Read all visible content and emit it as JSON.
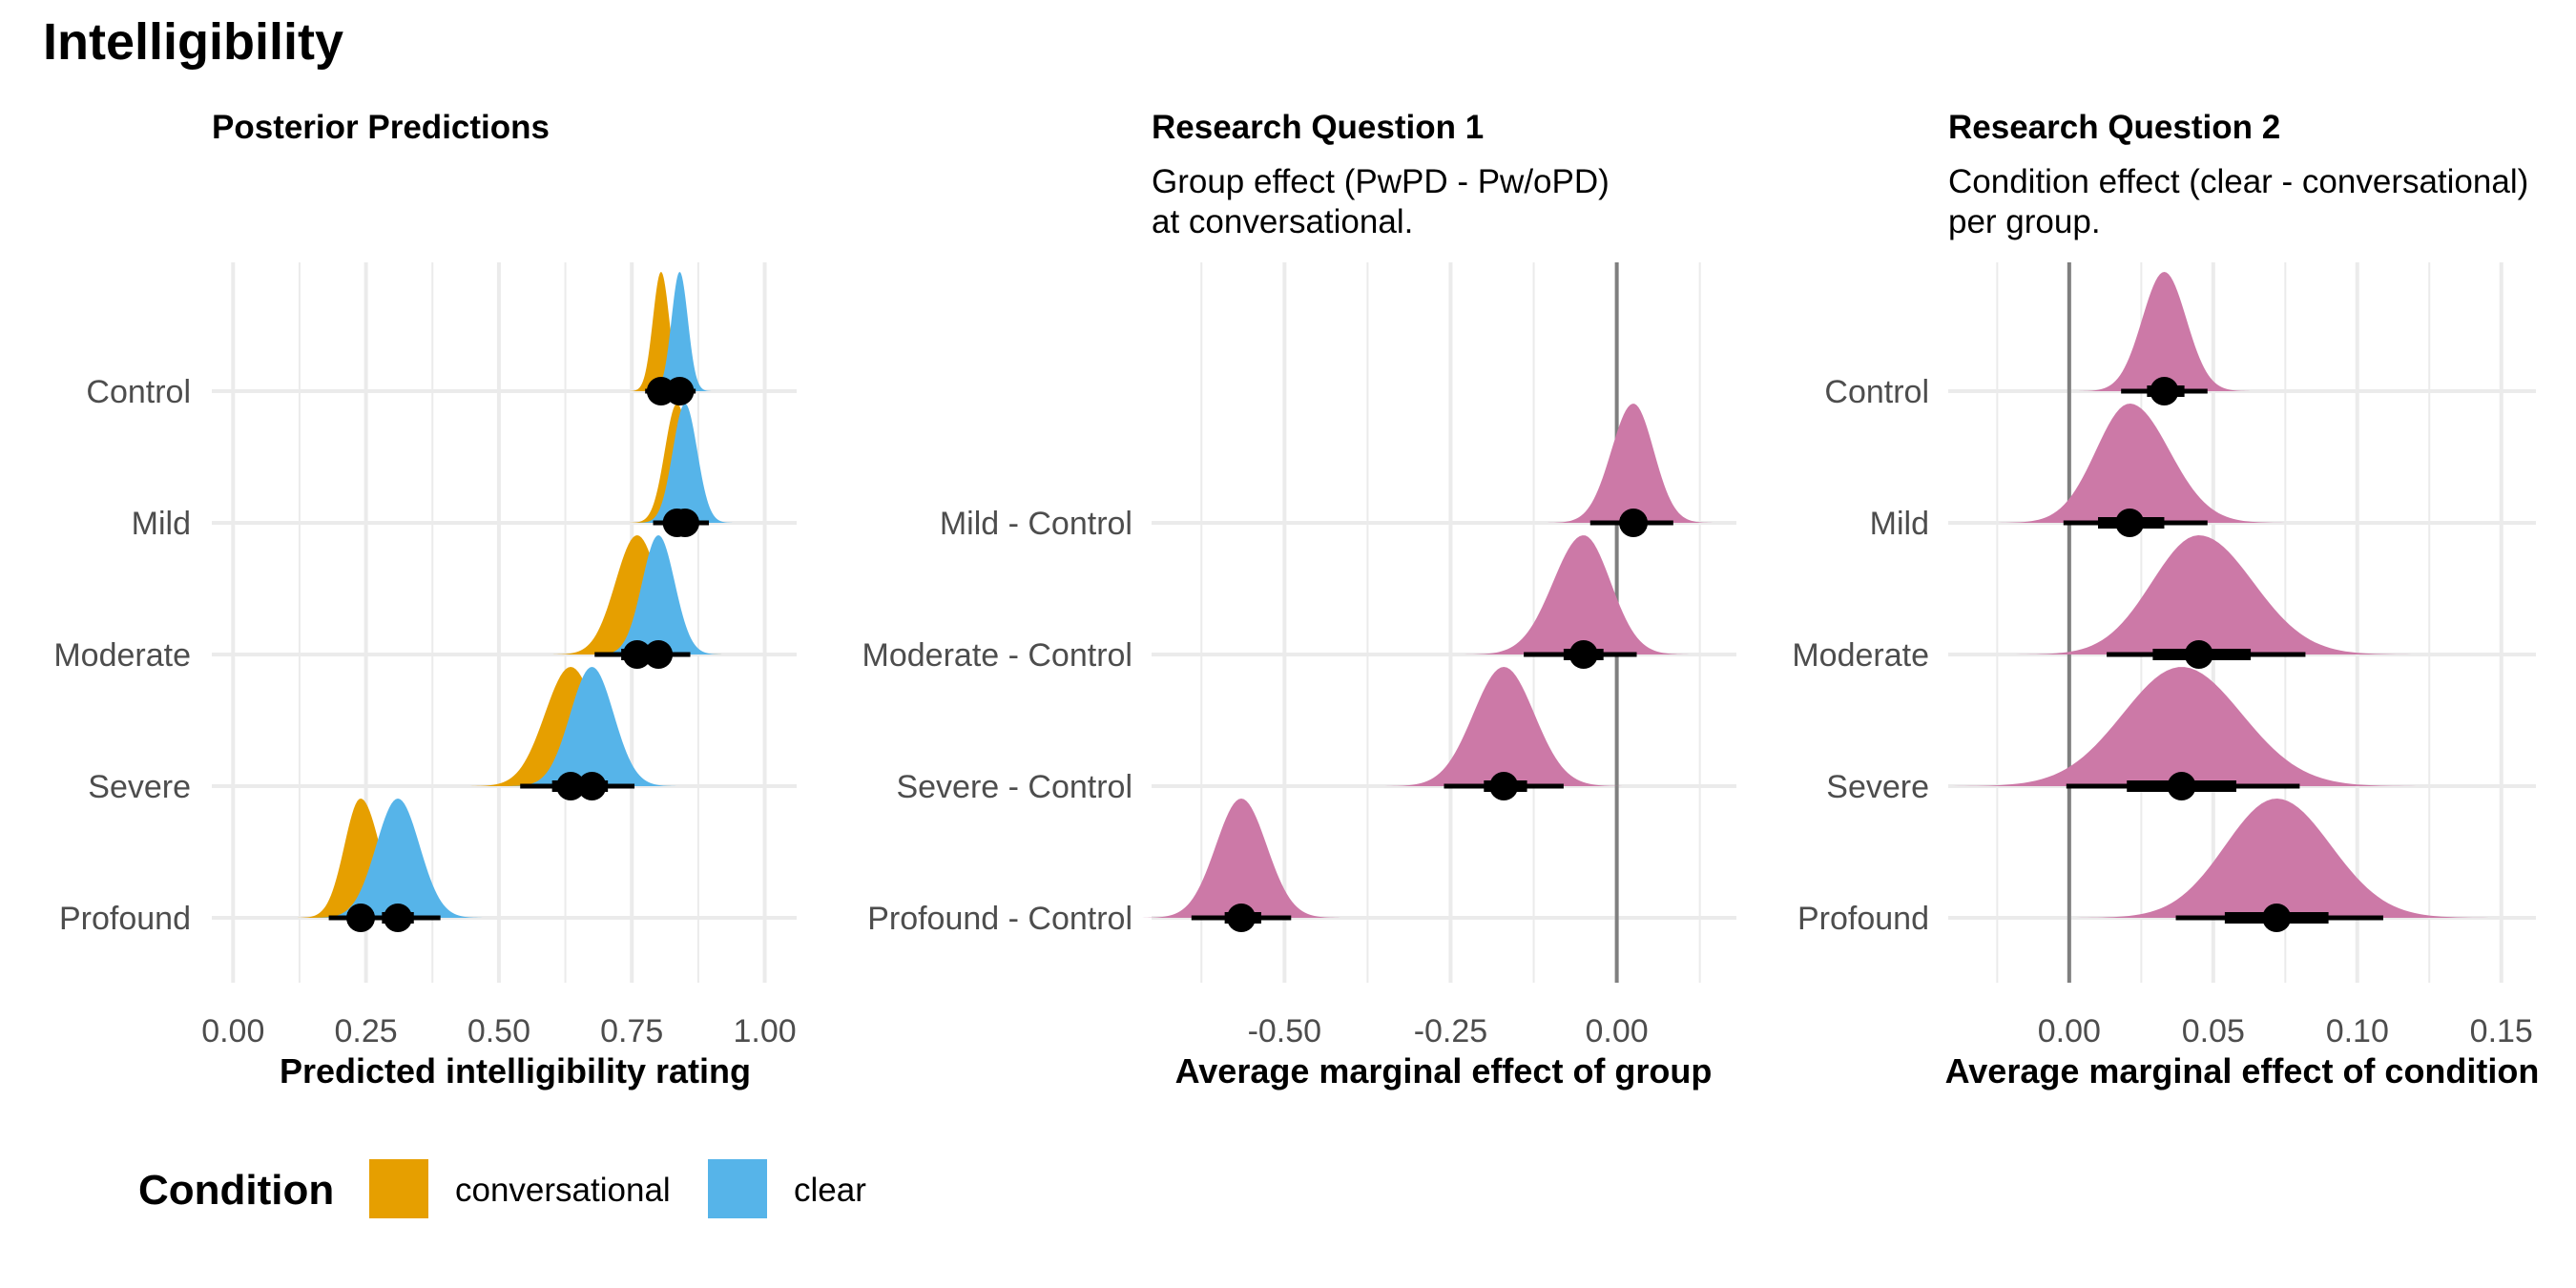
{
  "figure": {
    "title": "Intelligibility"
  },
  "colors": {
    "conversational": "#E69F00",
    "clear": "#56B4E9",
    "effect": "#CC79A7",
    "grid": "#ebebeb",
    "zero_line": "#7f7f7f",
    "interval": "#000000"
  },
  "legend": {
    "title": "Condition",
    "items": [
      {
        "label": "conversational",
        "color": "#E69F00"
      },
      {
        "label": "clear",
        "color": "#56B4E9"
      }
    ]
  },
  "chart_data": [
    {
      "type": "halfeye",
      "title": "Posterior Predictions",
      "subtitle": "",
      "xlabel": "Predicted intelligibility rating",
      "xlim": [
        -0.04,
        1.06
      ],
      "xticks": [
        0,
        0.25,
        0.5,
        0.75,
        1
      ],
      "xtick_labels": [
        "0.00",
        "0.25",
        "0.50",
        "0.75",
        "1.00"
      ],
      "categories": [
        "Control",
        "Mild",
        "Moderate",
        "Severe",
        "Profound"
      ],
      "series": [
        {
          "name": "conversational",
          "color": "#E69F00",
          "points": [
            {
              "category": "Control",
              "median": 0.805,
              "ci66": [
                0.795,
                0.815
              ],
              "ci95": [
                0.775,
                0.835
              ],
              "sd": 0.012
            },
            {
              "category": "Mild",
              "median": 0.835,
              "ci66": [
                0.82,
                0.85
              ],
              "ci95": [
                0.79,
                0.88
              ],
              "sd": 0.018
            },
            {
              "category": "Moderate",
              "median": 0.76,
              "ci66": [
                0.73,
                0.79
              ],
              "ci95": [
                0.68,
                0.84
              ],
              "sd": 0.03
            },
            {
              "category": "Severe",
              "median": 0.635,
              "ci66": [
                0.6,
                0.67
              ],
              "ci95": [
                0.54,
                0.73
              ],
              "sd": 0.04
            },
            {
              "category": "Profound",
              "median": 0.24,
              "ci66": [
                0.215,
                0.265
              ],
              "ci95": [
                0.18,
                0.31
              ],
              "sd": 0.03
            }
          ]
        },
        {
          "name": "clear",
          "color": "#56B4E9",
          "points": [
            {
              "category": "Control",
              "median": 0.84,
              "ci66": [
                0.83,
                0.85
              ],
              "ci95": [
                0.81,
                0.87
              ],
              "sd": 0.012
            },
            {
              "category": "Mild",
              "median": 0.85,
              "ci66": [
                0.835,
                0.865
              ],
              "ci95": [
                0.805,
                0.895
              ],
              "sd": 0.016
            },
            {
              "category": "Moderate",
              "median": 0.8,
              "ci66": [
                0.775,
                0.825
              ],
              "ci95": [
                0.74,
                0.86
              ],
              "sd": 0.026
            },
            {
              "category": "Severe",
              "median": 0.675,
              "ci66": [
                0.645,
                0.705
              ],
              "ci95": [
                0.595,
                0.755
              ],
              "sd": 0.036
            },
            {
              "category": "Profound",
              "median": 0.31,
              "ci66": [
                0.28,
                0.34
              ],
              "ci95": [
                0.23,
                0.39
              ],
              "sd": 0.035
            }
          ]
        }
      ]
    },
    {
      "type": "halfeye",
      "title": "Research Question 1",
      "subtitle": [
        "Group effect (PwPD - Pw/oPD)",
        "at conversational."
      ],
      "xlabel": "Average marginal effect of group",
      "xlim": [
        -0.7,
        0.18
      ],
      "xticks": [
        -0.5,
        -0.25,
        0
      ],
      "xtick_labels": [
        "-0.50",
        "-0.25",
        "0.00"
      ],
      "zero_line": 0,
      "categories": [
        "Mild - Control",
        "Moderate - Control",
        "Severe - Control",
        "Profound - Control"
      ],
      "rows": [
        1,
        2,
        3,
        4
      ],
      "series": [
        {
          "name": "",
          "color": "#CC79A7",
          "points": [
            {
              "category": "Mild - Control",
              "median": 0.025,
              "ci66": [
                0.005,
                0.045
              ],
              "ci95": [
                -0.04,
                0.085
              ],
              "sd": 0.022
            },
            {
              "category": "Moderate - Control",
              "median": -0.05,
              "ci66": [
                -0.08,
                -0.02
              ],
              "ci95": [
                -0.14,
                0.03
              ],
              "sd": 0.032
            },
            {
              "category": "Severe - Control",
              "median": -0.17,
              "ci66": [
                -0.2,
                -0.135
              ],
              "ci95": [
                -0.26,
                -0.08
              ],
              "sd": 0.035
            },
            {
              "category": "Profound - Control",
              "median": -0.565,
              "ci66": [
                -0.59,
                -0.535
              ],
              "ci95": [
                -0.64,
                -0.49
              ],
              "sd": 0.03
            }
          ]
        }
      ]
    },
    {
      "type": "halfeye",
      "title": "Research Question 2",
      "subtitle": [
        "Condition effect (clear - conversational)",
        "per group."
      ],
      "xlabel": "Average marginal effect of condition",
      "xlim": [
        -0.042,
        0.162
      ],
      "xticks": [
        0,
        0.05,
        0.1,
        0.15
      ],
      "xtick_labels": [
        "0.00",
        "0.05",
        "0.10",
        "0.15"
      ],
      "zero_line": 0,
      "categories": [
        "Control",
        "Mild",
        "Moderate",
        "Severe",
        "Profound"
      ],
      "series": [
        {
          "name": "",
          "color": "#CC79A7",
          "points": [
            {
              "category": "Control",
              "median": 0.033,
              "ci66": [
                0.027,
                0.04
              ],
              "ci95": [
                0.018,
                0.048
              ],
              "sd": 0.007
            },
            {
              "category": "Mild",
              "median": 0.021,
              "ci66": [
                0.01,
                0.033
              ],
              "ci95": [
                -0.002,
                0.048
              ],
              "sd": 0.012
            },
            {
              "category": "Moderate",
              "median": 0.045,
              "ci66": [
                0.029,
                0.063
              ],
              "ci95": [
                0.013,
                0.082
              ],
              "sd": 0.018
            },
            {
              "category": "Severe",
              "median": 0.039,
              "ci66": [
                0.02,
                0.058
              ],
              "ci95": [
                -0.001,
                0.08
              ],
              "sd": 0.02
            },
            {
              "category": "Profound",
              "median": 0.072,
              "ci66": [
                0.054,
                0.09
              ],
              "ci95": [
                0.037,
                0.109
              ],
              "sd": 0.018
            }
          ]
        }
      ]
    }
  ]
}
